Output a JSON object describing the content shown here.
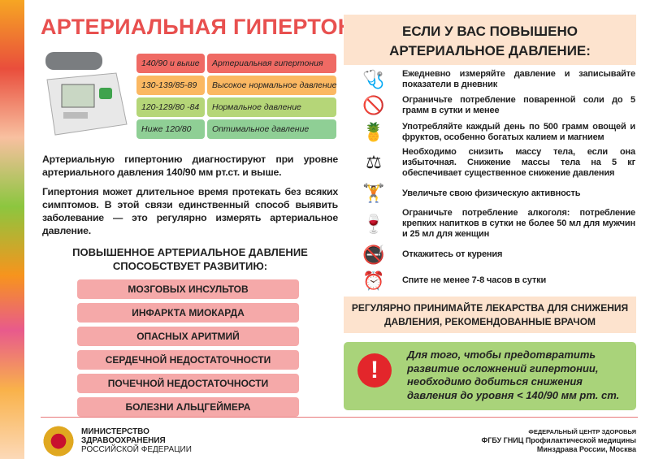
{
  "title": "АРТЕРИАЛЬНАЯ ГИПЕРТОНИЯ",
  "bp_table": [
    {
      "value": "140/90 и выше",
      "label": "Артериальная гипертония",
      "color": "#ef6a64"
    },
    {
      "value": "130-139/85-89",
      "label": "Высокое нормальное давление",
      "color": "#fbb862"
    },
    {
      "value": "120-129/80 -84",
      "label": "Нормальное давление",
      "color": "#b5d678"
    },
    {
      "value": "Ниже 120/80",
      "label": "Оптимальное давление",
      "color": "#8fcf95"
    }
  ],
  "para1": "Артериальную гипертонию диагностируют при уровне артериального давления 140/90 мм рт.ст. и выше.",
  "para2": "Гипертония может длительное время протекать без всяких симптомов. В этой связи единственный способ выявить заболевание — это регулярно измерять артериальное давление.",
  "risks_heading": "ПОВЫШЕННОЕ АРТЕРИАЛЬНОЕ ДАВЛЕНИЕ СПОСОБСТВУЕТ РАЗВИТИЮ:",
  "risks": [
    "МОЗГОВЫХ ИНСУЛЬТОВ",
    "ИНФАРКТА МИОКАРДА",
    "ОПАСНЫХ АРИТМИЙ",
    "СЕРДЕЧНОЙ НЕДОСТАТОЧНОСТИ",
    "ПОЧЕЧНОЙ НЕДОСТАТОЧНОСТИ",
    "БОЛЕЗНИ АЛЬЦГЕЙМЕРА"
  ],
  "right_heading": "ЕСЛИ У ВАС ПОВЫШЕНО АРТЕРИАЛЬНОЕ ДАВЛЕНИЕ:",
  "tips": [
    {
      "icon": "blood-pressure-monitor-icon",
      "text": "Ежедневно измеряйте давление и записывайте показатели в дневник"
    },
    {
      "icon": "no-salt-icon",
      "text": "Ограничьте потребление поваренной соли до 5 грамм в сутки и менее"
    },
    {
      "icon": "fruits-vegetables-icon",
      "text": "Употребляйте каждый день по 500 грамм овощей и фруктов, особенно богатых калием и магнием"
    },
    {
      "icon": "scales-icon",
      "text": "Необходимо снизить массу тела, если она избыточная. Снижение массы тела на 5 кг обеспечивает существенное снижение давления"
    },
    {
      "icon": "exercise-icon",
      "text": "Увеличьте свою физическую активность"
    },
    {
      "icon": "no-alcohol-icon",
      "text": "Ограничьте потребление алкоголя: потребление крепких напитков в сутки не более 50 мл для мужчин и 25 мл для женщин"
    },
    {
      "icon": "no-smoking-icon",
      "text": "Откажитесь от курения"
    },
    {
      "icon": "alarm-clock-icon",
      "text": "Спите не менее 7-8 часов в сутки"
    }
  ],
  "medication": "РЕГУЛЯРНО ПРИНИМАЙТЕ ЛЕКАРСТВА ДЛЯ СНИЖЕНИЯ ДАВЛЕНИЯ, РЕКОМЕНДОВАННЫЕ ВРАЧОМ",
  "warning": "Для того, чтобы предотвратить развитие осложнений гипертонии, необходимо добиться снижения давления до уровня < 140/90 мм рт. ст.",
  "footer": {
    "ministry": [
      "МИНИСТЕРСТВО",
      "ЗДРАВООХРАНЕНИЯ",
      "РОССИЙСКОЙ ФЕДЕРАЦИИ"
    ],
    "center": [
      "ФЕДЕРАЛЬНЫЙ ЦЕНТР ЗДОРОВЬЯ",
      "ФГБУ ГНИЦ Профилактической медицины",
      "Минздрава России, Москва"
    ]
  }
}
